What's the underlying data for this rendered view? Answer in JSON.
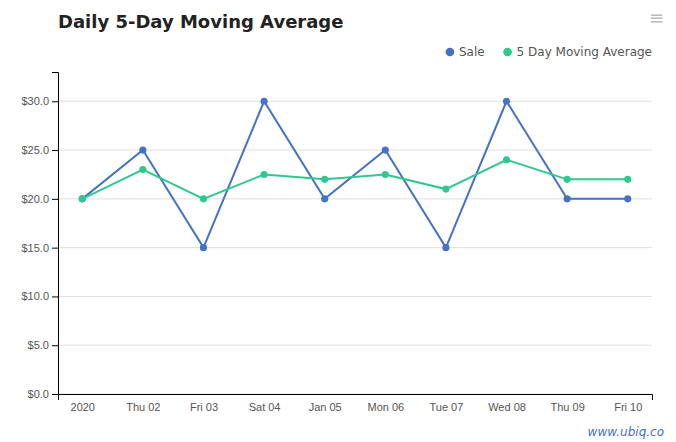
{
  "chart_data": {
    "type": "line",
    "title": "Daily 5-Day Moving Average",
    "categories": [
      "2020",
      "Thu 02",
      "Fri 03",
      "Sat 04",
      "Jan 05",
      "Mon 06",
      "Tue 07",
      "Wed 08",
      "Thu 09",
      "Fri 10"
    ],
    "series": [
      {
        "name": "Sale",
        "color": "#4472c4",
        "marker": "circle",
        "line_style": "solid",
        "values": [
          20,
          25,
          15,
          30,
          20,
          25,
          15,
          30,
          20,
          20
        ]
      },
      {
        "name": "5 Day Moving Average",
        "color": "#2dc98e",
        "marker": "circle",
        "line_style": "solid",
        "values": [
          20,
          23,
          20,
          22.5,
          22,
          22.5,
          21,
          24,
          22,
          22
        ]
      }
    ],
    "ylim": [
      0,
      33
    ],
    "yticks": [
      {
        "value": 0,
        "label": "$0.0"
      },
      {
        "value": 5,
        "label": "$5.0"
      },
      {
        "value": 10,
        "label": "$10.0"
      },
      {
        "value": 15,
        "label": "$15.0"
      },
      {
        "value": 20,
        "label": "$20.0"
      },
      {
        "value": 25,
        "label": "$25.0"
      },
      {
        "value": 30,
        "label": "$30.0"
      }
    ],
    "grid": true,
    "legend": "top-right",
    "annotations": [
      "www.ubiq.co",
      "≡"
    ]
  }
}
